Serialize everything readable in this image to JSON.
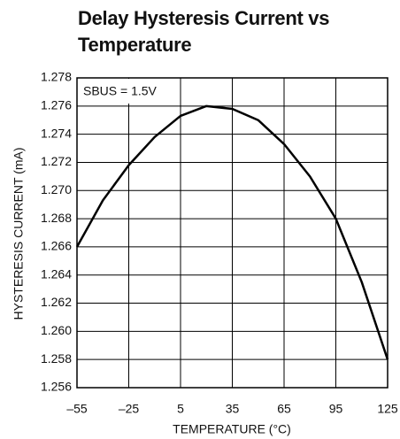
{
  "chart_data": {
    "type": "line",
    "title": "Delay Hysteresis Current vs Temperature",
    "annotation": "SBUS = 1.5V",
    "xlabel": "TEMPERATURE (°C)",
    "ylabel": "HYSTERESIS CURRENT (mA)",
    "x": [
      -55,
      -40,
      -25,
      -10,
      5,
      20,
      35,
      50,
      65,
      80,
      95,
      110,
      125
    ],
    "values": [
      1.266,
      1.2693,
      1.2718,
      1.2738,
      1.2753,
      1.276,
      1.2758,
      1.275,
      1.2733,
      1.271,
      1.268,
      1.2635,
      1.258
    ],
    "color": "#000000",
    "xlim": [
      -55,
      125
    ],
    "xticks": [
      {
        "value": -55,
        "label": "–55"
      },
      {
        "value": -25,
        "label": "–25"
      },
      5,
      35,
      65,
      95,
      125
    ],
    "ylim": [
      1.256,
      1.278
    ],
    "yticks": [
      1.256,
      1.258,
      {
        "value": 1.26,
        "label": "1.260"
      },
      1.262,
      1.264,
      1.266,
      1.268,
      {
        "value": 1.27,
        "label": "1.270"
      },
      1.272,
      1.274,
      1.276,
      1.278
    ],
    "grid": true
  }
}
